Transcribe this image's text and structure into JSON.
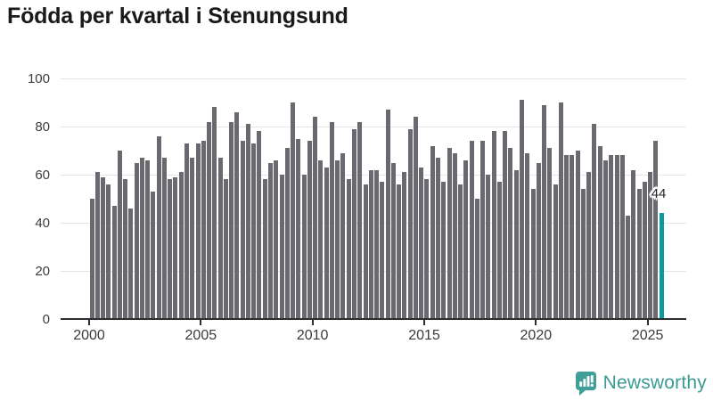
{
  "title": "Födda per kvartal i Stenungsund",
  "chart_data": {
    "type": "bar",
    "title": "Födda per kvartal i Stenungsund",
    "x_unit": "quarter",
    "start_period": "2000-Q1",
    "end_period": "2025-Q3",
    "values": [
      50,
      61,
      59,
      56,
      47,
      70,
      58,
      46,
      65,
      67,
      66,
      53,
      76,
      67,
      58,
      59,
      61,
      73,
      67,
      73,
      74,
      82,
      88,
      67,
      58,
      82,
      86,
      74,
      81,
      73,
      78,
      58,
      65,
      66,
      60,
      71,
      90,
      75,
      60,
      74,
      84,
      66,
      63,
      82,
      66,
      69,
      58,
      79,
      82,
      56,
      62,
      62,
      57,
      87,
      65,
      56,
      61,
      79,
      84,
      63,
      58,
      72,
      67,
      57,
      71,
      69,
      56,
      66,
      74,
      50,
      74,
      60,
      78,
      57,
      78,
      71,
      62,
      91,
      69,
      54,
      65,
      89,
      71,
      56,
      90,
      68,
      68,
      70,
      54,
      61,
      81,
      72,
      66,
      68,
      68,
      68,
      43,
      62,
      54,
      57,
      61,
      74,
      44
    ],
    "highlight_index": 102,
    "highlight_value": 44,
    "annotation": {
      "text": "44"
    },
    "x_tick_labels": [
      "2000",
      "2005",
      "2010",
      "2015",
      "2020",
      "2025"
    ],
    "x_tick_indices": [
      0,
      20,
      40,
      60,
      80,
      100
    ],
    "y_ticks": [
      0,
      20,
      40,
      60,
      80,
      100
    ],
    "ylim": [
      0,
      100
    ],
    "grid": "horizontal",
    "legend": "none",
    "bar_color": "#69696f",
    "highlight_color": "#0b9aa1",
    "axis_color": "#2d2d2d",
    "gridline_color": "#e4e4e6"
  },
  "footer": {
    "brand": "Newsworthy",
    "brand_color": "#3a9a94",
    "logo_icon": "newsworthy-speech-bubble-bar-chart-icon"
  }
}
